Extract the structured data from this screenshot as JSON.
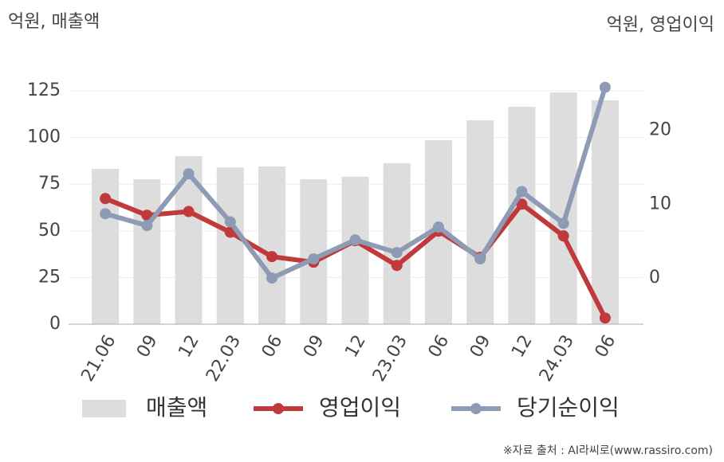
{
  "chart_data": {
    "type": "bar-line",
    "ylabel": "억원, 매출액",
    "y2label": "억원, 영업이익",
    "source": "※자료 출처 : AI라씨로(www.rassiro.com)",
    "categories": [
      "21.06",
      "09",
      "12",
      "22.03",
      "06",
      "09",
      "12",
      "23.03",
      "06",
      "09",
      "12",
      "24.03",
      "06"
    ],
    "series": [
      {
        "name": "매출액",
        "type": "bar",
        "color": "#dddddd",
        "values": [
          83.2,
          77.6,
          90,
          84,
          84.5,
          77.6,
          79,
          86.2,
          98.5,
          109.2,
          116.5,
          124.1,
          119.9
        ]
      },
      {
        "name": "영업이익",
        "type": "line",
        "axis": "y2",
        "color": "#c0393b",
        "values": [
          10.75,
          8.5,
          9.0,
          6.2,
          2.9,
          2.15,
          5.05,
          1.7,
          6.35,
          2.8,
          10.0,
          5.7,
          -5.4
        ]
      },
      {
        "name": "당기순이익",
        "type": "line",
        "axis": "y2",
        "color": "#8e9bb5",
        "values": [
          8.7,
          7.1,
          14.1,
          7.6,
          0,
          2.6,
          5.15,
          3.45,
          6.9,
          2.6,
          11.7,
          7.4,
          25.8
        ]
      }
    ],
    "ylim": [
      0,
      135
    ],
    "yticks": [
      0,
      25,
      50,
      75,
      100,
      125
    ],
    "y2lim": [
      -6.24,
      27.85
    ],
    "y2ticks": [
      0,
      10,
      20
    ],
    "grid": true
  }
}
